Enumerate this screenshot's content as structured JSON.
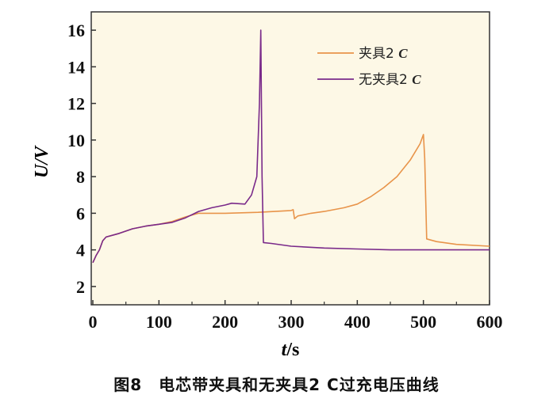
{
  "chart_data": {
    "type": "line",
    "title": "",
    "xlabel": "t /s",
    "xlabel_var": "t",
    "xlabel_unit": "/s",
    "ylabel": "U/V",
    "ylabel_var": "U",
    "ylabel_unit": "/V",
    "xlim": [
      0,
      600
    ],
    "ylim": [
      1,
      17
    ],
    "xticks": [
      0,
      100,
      200,
      300,
      400,
      500,
      600
    ],
    "yticks": [
      2,
      4,
      6,
      8,
      10,
      12,
      14,
      16
    ],
    "grid": false,
    "legend_position": "top-right",
    "series": [
      {
        "name": "夹具2 C",
        "name_main": "夹具2 ",
        "name_italic": "C",
        "color": "#e8944a",
        "x": [
          0,
          5,
          10,
          15,
          20,
          40,
          60,
          80,
          100,
          120,
          140,
          160,
          200,
          250,
          300,
          303,
          305,
          310,
          330,
          350,
          380,
          400,
          420,
          440,
          460,
          480,
          495,
          500,
          502,
          505,
          520,
          550,
          600
        ],
        "y": [
          3.3,
          3.7,
          4.0,
          4.5,
          4.7,
          4.9,
          5.15,
          5.3,
          5.4,
          5.55,
          5.8,
          6.0,
          6.0,
          6.05,
          6.15,
          6.2,
          5.7,
          5.85,
          6.0,
          6.1,
          6.3,
          6.5,
          6.9,
          7.4,
          8.0,
          8.9,
          9.8,
          10.3,
          9.0,
          4.6,
          4.45,
          4.3,
          4.2
        ]
      },
      {
        "name": "无夹具2 C",
        "name_main": "无夹具2 ",
        "name_italic": "C",
        "color": "#7a2a8a",
        "x": [
          0,
          5,
          10,
          15,
          20,
          40,
          60,
          80,
          100,
          120,
          140,
          160,
          180,
          200,
          210,
          230,
          240,
          248,
          252,
          254,
          256,
          258,
          270,
          300,
          350,
          400,
          450,
          600
        ],
        "y": [
          3.3,
          3.7,
          4.0,
          4.5,
          4.7,
          4.9,
          5.15,
          5.3,
          5.4,
          5.5,
          5.75,
          6.1,
          6.3,
          6.45,
          6.55,
          6.5,
          7.0,
          8.0,
          12.0,
          16.0,
          8.0,
          4.4,
          4.35,
          4.2,
          4.1,
          4.05,
          4.0,
          4.0
        ]
      }
    ]
  },
  "caption": "图8　电芯带夹具和无夹具2 C过充电压曲线",
  "colors": {
    "plot_background": "#fdf8e6"
  }
}
